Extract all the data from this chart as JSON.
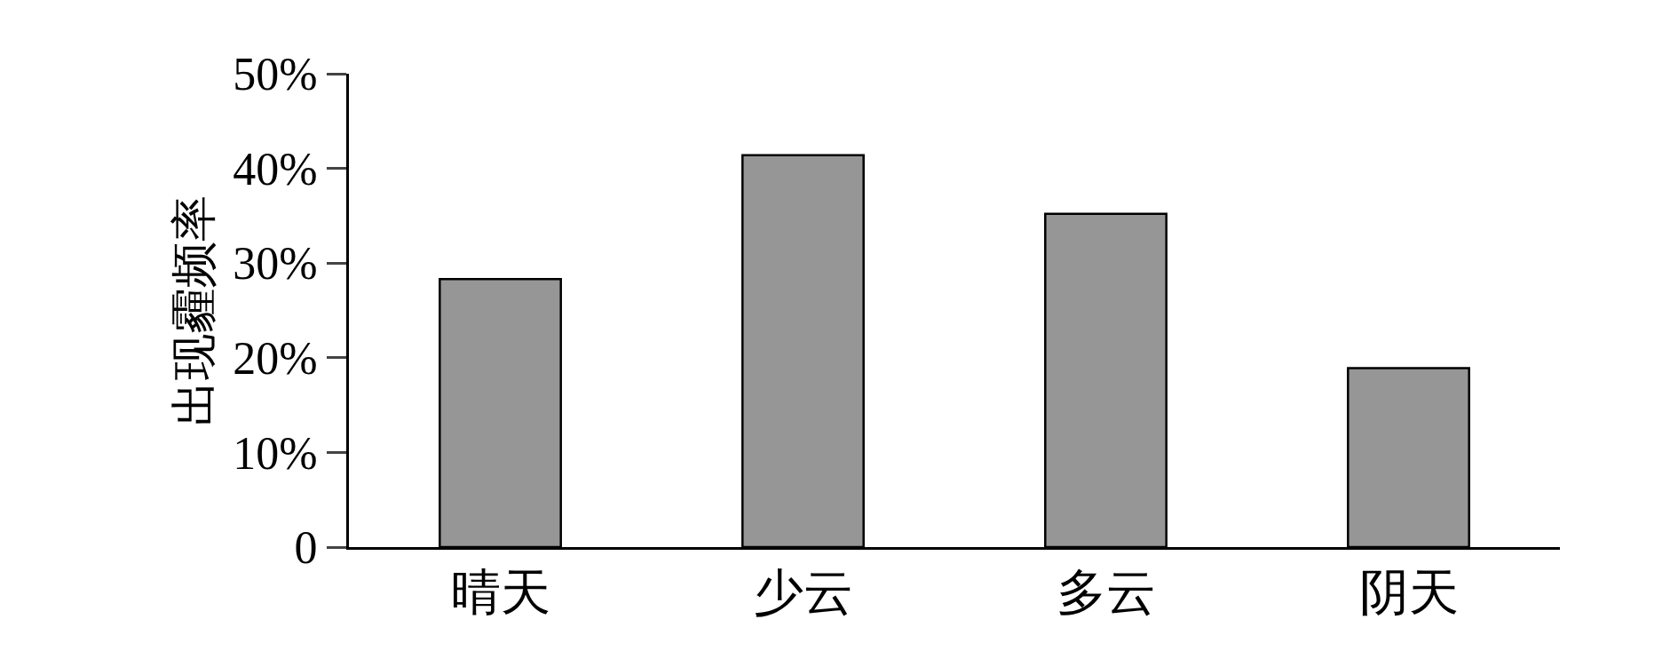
{
  "chart_data": {
    "type": "bar",
    "ylabel": "出现霾频率",
    "categories": [
      "晴天",
      "少云",
      "多云",
      "阴天"
    ],
    "values": [
      28.3,
      41.4,
      35.2,
      18.9
    ],
    "color": "#969696",
    "ylim": [
      0,
      50
    ],
    "yticks": [
      0,
      {
        "value": 10,
        "label": "10%"
      },
      {
        "value": 20,
        "label": "20%"
      },
      {
        "value": 30,
        "label": "30%"
      },
      {
        "value": 40,
        "label": "40%"
      },
      {
        "value": 50,
        "label": "50%"
      }
    ]
  }
}
